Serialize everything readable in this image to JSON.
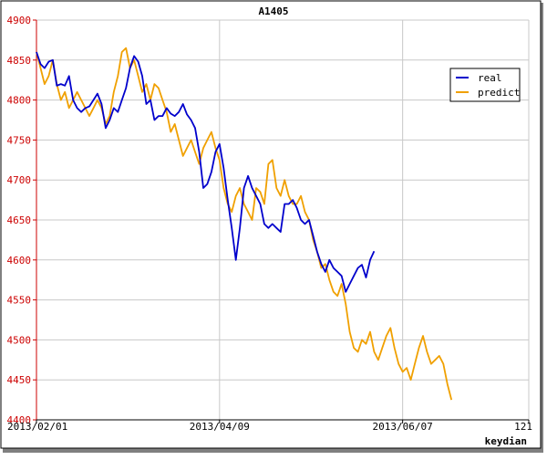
{
  "chart_data": {
    "type": "line",
    "title": "A1405",
    "xlabel": "keydian",
    "ylabel": "",
    "ylim": [
      4400,
      4900
    ],
    "yticks": [
      4400,
      4450,
      4500,
      4550,
      4600,
      4650,
      4700,
      4750,
      4800,
      4850,
      4900
    ],
    "xlim": [
      0,
      121
    ],
    "xticks": [
      {
        "x": 0,
        "label": "2013/02/01"
      },
      {
        "x": 45,
        "label": "2013/04/09"
      },
      {
        "x": 90,
        "label": "2013/06/07"
      },
      {
        "x": 121,
        "label": "121"
      }
    ],
    "grid": true,
    "legend_position": "top-right",
    "colors": {
      "real": "#0000cc",
      "predict": "#f0a000",
      "axis": "#cc0000"
    },
    "series": [
      {
        "name": "real",
        "color": "#0000cc",
        "values": [
          4860,
          4845,
          4840,
          4848,
          4850,
          4818,
          4820,
          4818,
          4830,
          4800,
          4790,
          4785,
          4790,
          4792,
          4800,
          4808,
          4795,
          4765,
          4775,
          4790,
          4785,
          4800,
          4815,
          4840,
          4855,
          4848,
          4830,
          4795,
          4800,
          4775,
          4780,
          4780,
          4790,
          4783,
          4780,
          4785,
          4795,
          4782,
          4775,
          4765,
          4735,
          4690,
          4695,
          4710,
          4735,
          4745,
          4715,
          4675,
          4640,
          4600,
          4640,
          4690,
          4705,
          4690,
          4680,
          4670,
          4645,
          4640,
          4645,
          4640,
          4635,
          4670,
          4670,
          4675,
          4665,
          4650,
          4645,
          4650,
          4630,
          4610,
          4595,
          4585,
          4600,
          4590,
          4585,
          4580,
          4560,
          4570,
          4580,
          4590,
          4594,
          4578,
          4600,
          4611
        ]
      },
      {
        "name": "predict",
        "color": "#f0a000",
        "values": [
          4860,
          4840,
          4820,
          4830,
          4850,
          4820,
          4800,
          4810,
          4790,
          4800,
          4810,
          4800,
          4790,
          4780,
          4790,
          4800,
          4790,
          4770,
          4780,
          4810,
          4830,
          4860,
          4865,
          4840,
          4850,
          4830,
          4810,
          4820,
          4800,
          4820,
          4815,
          4800,
          4785,
          4760,
          4770,
          4750,
          4730,
          4740,
          4750,
          4735,
          4720,
          4740,
          4750,
          4760,
          4740,
          4725,
          4690,
          4670,
          4660,
          4680,
          4690,
          4670,
          4660,
          4650,
          4690,
          4685,
          4670,
          4720,
          4725,
          4690,
          4680,
          4700,
          4680,
          4670,
          4670,
          4680,
          4660,
          4650,
          4625,
          4610,
          4590,
          4595,
          4575,
          4560,
          4555,
          4570,
          4545,
          4510,
          4490,
          4485,
          4500,
          4495,
          4510,
          4485,
          4475,
          4490,
          4505,
          4515,
          4490,
          4470,
          4460,
          4465,
          4450,
          4470,
          4490,
          4505,
          4485,
          4470,
          4475,
          4480,
          4470,
          4445,
          4425
        ]
      }
    ]
  }
}
